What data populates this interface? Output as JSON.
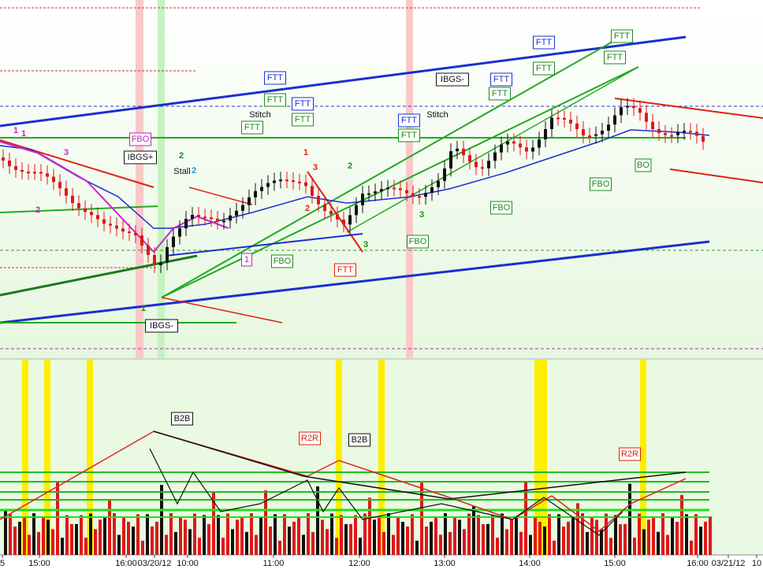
{
  "labels": [
    "FTT",
    "FTT",
    "FTT",
    "FTT",
    "FTT",
    "FTT",
    "FTT",
    "FTT",
    "FTT",
    "FTT",
    "FTT",
    "FTT",
    "FTT",
    "FTT",
    "FBO",
    "FBO",
    "FBO",
    "FBO",
    "FBO",
    "BO",
    "IBGS+",
    "IBGS-",
    "IBGS-",
    "1",
    "B2B",
    "R2R",
    "B2B",
    "R2R"
  ],
  "notes": [
    "Stitch",
    "Stitch",
    "Stall",
    "1",
    "2",
    "3",
    "2",
    "1",
    "2",
    "3",
    "1",
    "2",
    "3",
    "2",
    "3",
    "1"
  ],
  "time_axis": [
    "5",
    "15:00",
    "16:00",
    "03/20/12",
    "10:00",
    "11:00",
    "12:00",
    "13:00",
    "14:00",
    "15:00",
    "16:00",
    "03/21/12",
    "10"
  ]
}
